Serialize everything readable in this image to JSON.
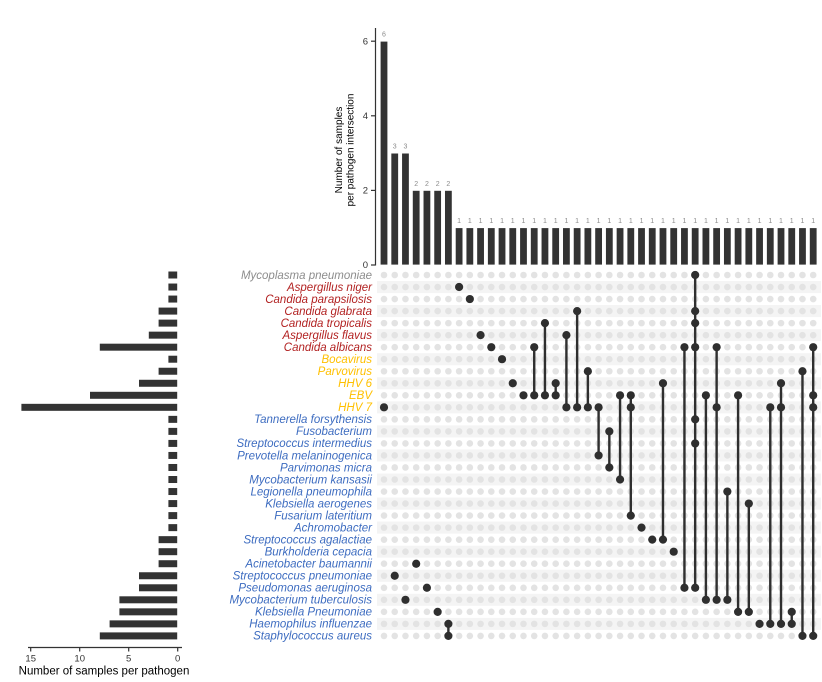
{
  "figure": {
    "description": "UpSet plot of pathogen co-detection across samples"
  },
  "chart_data": {
    "type": "upset",
    "top_axis": {
      "label_line1": "Number of samples",
      "label_line2": "per pathogen intersection",
      "ticks": [
        0,
        2,
        4,
        6
      ],
      "ylim": [
        0,
        6.5
      ]
    },
    "left_axis": {
      "label": "Number of samples per pathogen",
      "ticks": [
        15,
        10,
        5,
        0
      ],
      "xlim": [
        0,
        16.5
      ]
    },
    "colors": {
      "bar_fill": "#333333",
      "dot_filled": "#2f2f2f",
      "dot_empty": "#e3e3e3",
      "band": "#f4f4f4",
      "count_label": "#8c8c8c",
      "axis_text": "#333333",
      "group_mycoplasma": "#8c8c8c",
      "group_fungus": "#b22222",
      "group_virus": "#ffc000",
      "group_bacteria": "#3d6cc0"
    },
    "pathogens": [
      {
        "name": "Mycoplasma pneumoniae",
        "group": "mycoplasma",
        "total": 1
      },
      {
        "name": "Aspergillus niger",
        "group": "fungus",
        "total": 1
      },
      {
        "name": "Candida parapsilosis",
        "group": "fungus",
        "total": 1
      },
      {
        "name": "Candida glabrata",
        "group": "fungus",
        "total": 2
      },
      {
        "name": "Candida tropicalis",
        "group": "fungus",
        "total": 2
      },
      {
        "name": "Aspergillus flavus",
        "group": "fungus",
        "total": 3
      },
      {
        "name": "Candida albicans",
        "group": "fungus",
        "total": 8
      },
      {
        "name": "Bocavirus",
        "group": "virus",
        "total": 1
      },
      {
        "name": "Parvovirus",
        "group": "virus",
        "total": 2
      },
      {
        "name": "HHV 6",
        "group": "virus",
        "total": 4
      },
      {
        "name": "EBV",
        "group": "virus",
        "total": 9
      },
      {
        "name": "HHV 7",
        "group": "virus",
        "total": 16
      },
      {
        "name": "Tannerella forsythensis",
        "group": "bacteria",
        "total": 1
      },
      {
        "name": "Fusobacterium",
        "group": "bacteria",
        "total": 1
      },
      {
        "name": "Streptococcus intermedius",
        "group": "bacteria",
        "total": 1
      },
      {
        "name": "Prevotella melaninogenica",
        "group": "bacteria",
        "total": 1
      },
      {
        "name": "Parvimonas micra",
        "group": "bacteria",
        "total": 1
      },
      {
        "name": "Mycobacterium kansasii",
        "group": "bacteria",
        "total": 1
      },
      {
        "name": "Legionella pneumophila",
        "group": "bacteria",
        "total": 1
      },
      {
        "name": "Klebsiella aerogenes",
        "group": "bacteria",
        "total": 1
      },
      {
        "name": "Fusarium lateritium",
        "group": "bacteria",
        "total": 1
      },
      {
        "name": "Achromobacter",
        "group": "bacteria",
        "total": 1
      },
      {
        "name": "Streptococcus agalactiae",
        "group": "bacteria",
        "total": 2
      },
      {
        "name": "Burkholderia cepacia",
        "group": "bacteria",
        "total": 2
      },
      {
        "name": "Acinetobacter baumannii",
        "group": "bacteria",
        "total": 2
      },
      {
        "name": "Streptococcus pneumoniae",
        "group": "bacteria",
        "total": 4
      },
      {
        "name": "Pseudomonas aeruginosa",
        "group": "bacteria",
        "total": 4
      },
      {
        "name": "Mycobacterium tuberculosis",
        "group": "bacteria",
        "total": 6
      },
      {
        "name": "Klebsiella Pneumoniae",
        "group": "bacteria",
        "total": 6
      },
      {
        "name": "Haemophilus influenzae",
        "group": "bacteria",
        "total": 7
      },
      {
        "name": "Staphylococcus aureus",
        "group": "bacteria",
        "total": 8
      }
    ],
    "intersections": [
      {
        "size": 6,
        "members": [
          "HHV 7"
        ]
      },
      {
        "size": 3,
        "members": [
          "Streptococcus pneumoniae"
        ]
      },
      {
        "size": 3,
        "members": [
          "Mycobacterium tuberculosis"
        ]
      },
      {
        "size": 2,
        "members": [
          "Acinetobacter baumannii"
        ]
      },
      {
        "size": 2,
        "members": [
          "Pseudomonas aeruginosa"
        ]
      },
      {
        "size": 2,
        "members": [
          "Klebsiella Pneumoniae"
        ]
      },
      {
        "size": 2,
        "members": [
          "Haemophilus influenzae",
          "Staphylococcus aureus"
        ]
      },
      {
        "size": 1,
        "members": [
          "Aspergillus niger"
        ]
      },
      {
        "size": 1,
        "members": [
          "Candida parapsilosis"
        ]
      },
      {
        "size": 1,
        "members": [
          "Aspergillus flavus"
        ]
      },
      {
        "size": 1,
        "members": [
          "Candida albicans"
        ]
      },
      {
        "size": 1,
        "members": [
          "Bocavirus"
        ]
      },
      {
        "size": 1,
        "members": [
          "HHV 6"
        ]
      },
      {
        "size": 1,
        "members": [
          "EBV"
        ]
      },
      {
        "size": 1,
        "members": [
          "Candida albicans",
          "EBV"
        ]
      },
      {
        "size": 1,
        "members": [
          "Candida tropicalis",
          "EBV"
        ]
      },
      {
        "size": 1,
        "members": [
          "HHV 6",
          "EBV"
        ]
      },
      {
        "size": 1,
        "members": [
          "Aspergillus flavus",
          "HHV 7"
        ]
      },
      {
        "size": 1,
        "members": [
          "Candida glabrata",
          "HHV 7"
        ]
      },
      {
        "size": 1,
        "members": [
          "Parvovirus",
          "HHV 7"
        ]
      },
      {
        "size": 1,
        "members": [
          "HHV 7",
          "Prevotella melaninogenica"
        ]
      },
      {
        "size": 1,
        "members": [
          "Fusobacterium",
          "Parvimonas micra"
        ]
      },
      {
        "size": 1,
        "members": [
          "EBV",
          "Mycobacterium kansasii"
        ]
      },
      {
        "size": 1,
        "members": [
          "EBV",
          "HHV 7",
          "Fusarium lateritium"
        ]
      },
      {
        "size": 1,
        "members": [
          "Achromobacter"
        ]
      },
      {
        "size": 1,
        "members": [
          "Streptococcus agalactiae"
        ]
      },
      {
        "size": 1,
        "members": [
          "HHV 6",
          "Streptococcus agalactiae"
        ]
      },
      {
        "size": 1,
        "members": [
          "Burkholderia cepacia"
        ]
      },
      {
        "size": 1,
        "members": [
          "Candida albicans",
          "Pseudomonas aeruginosa"
        ]
      },
      {
        "size": 1,
        "members": [
          "Mycoplasma pneumoniae",
          "Candida glabrata",
          "Candida tropicalis",
          "Candida albicans",
          "Tannerella forsythensis",
          "Streptococcus intermedius",
          "Pseudomonas aeruginosa"
        ]
      },
      {
        "size": 1,
        "members": [
          "EBV",
          "Mycobacterium tuberculosis"
        ]
      },
      {
        "size": 1,
        "members": [
          "Candida albicans",
          "HHV 7",
          "Mycobacterium tuberculosis"
        ]
      },
      {
        "size": 1,
        "members": [
          "Legionella pneumophila",
          "Mycobacterium tuberculosis"
        ]
      },
      {
        "size": 1,
        "members": [
          "EBV",
          "Klebsiella Pneumoniae"
        ]
      },
      {
        "size": 1,
        "members": [
          "Klebsiella aerogenes",
          "Klebsiella Pneumoniae"
        ]
      },
      {
        "size": 1,
        "members": [
          "Haemophilus influenzae"
        ]
      },
      {
        "size": 1,
        "members": [
          "HHV 7",
          "Haemophilus influenzae"
        ]
      },
      {
        "size": 1,
        "members": [
          "HHV 6",
          "HHV 7",
          "Haemophilus influenzae"
        ]
      },
      {
        "size": 1,
        "members": [
          "Klebsiella Pneumoniae",
          "Haemophilus influenzae"
        ]
      },
      {
        "size": 1,
        "members": [
          "Parvovirus",
          "Staphylococcus aureus"
        ]
      },
      {
        "size": 1,
        "members": [
          "Candida albicans",
          "EBV",
          "HHV 7",
          "Staphylococcus aureus"
        ]
      }
    ]
  }
}
